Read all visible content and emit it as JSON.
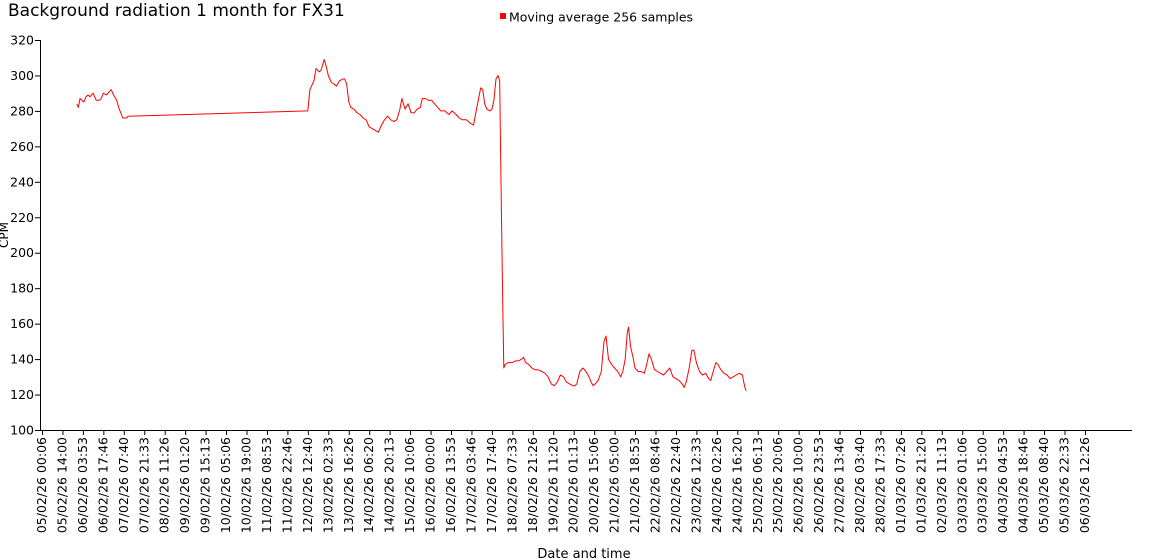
{
  "chart_data": {
    "type": "line",
    "title": "Background radiation 1 month for FX31",
    "xlabel": "Date and time",
    "ylabel": "CPM",
    "ylim": [
      100,
      320
    ],
    "yticks": [
      100,
      120,
      140,
      160,
      180,
      200,
      220,
      240,
      260,
      280,
      300,
      320
    ],
    "xticks": [
      "05/02/26 00:06",
      "05/02/26 14:00",
      "06/02/26 03:53",
      "06/02/26 17:46",
      "07/02/26 07:40",
      "07/02/26 21:33",
      "08/02/26 11:26",
      "09/02/26 01:20",
      "09/02/26 15:13",
      "10/02/26 05:06",
      "10/02/26 19:00",
      "11/02/26 08:53",
      "11/02/26 22:46",
      "12/02/26 12:40",
      "13/02/26 02:33",
      "13/02/26 16:26",
      "14/02/26 06:20",
      "14/02/26 20:13",
      "15/02/26 10:06",
      "16/02/26 00:00",
      "16/02/26 13:53",
      "17/02/26 03:46",
      "17/02/26 17:40",
      "18/02/26 07:33",
      "18/02/26 21:26",
      "19/02/26 11:20",
      "20/02/26 01:13",
      "20/02/26 15:06",
      "21/02/26 05:00",
      "21/02/26 18:53",
      "22/02/26 08:46",
      "22/02/26 22:40",
      "23/02/26 12:33",
      "24/02/26 02:26",
      "24/02/26 16:20",
      "25/02/26 06:13",
      "25/02/26 20:06",
      "26/02/26 10:00",
      "26/02/26 23:53",
      "27/02/26 13:46",
      "28/02/26 03:40",
      "28/02/26 17:33",
      "01/03/26 07:26",
      "01/03/26 21:20",
      "02/03/26 11:13",
      "03/03/26 01:06",
      "03/03/26 15:00",
      "04/03/26 04:53",
      "04/03/26 18:46",
      "05/03/26 08:40",
      "05/03/26 22:33",
      "06/03/26 12:26"
    ],
    "grid": false,
    "legend_position": "top-center",
    "series": [
      {
        "name": "Moving average 256 samples",
        "color": "#ff0000",
        "points": [
          [
            1.7,
            284
          ],
          [
            1.78,
            282
          ],
          [
            1.86,
            287
          ],
          [
            1.95,
            286
          ],
          [
            2.05,
            285
          ],
          [
            2.15,
            288
          ],
          [
            2.25,
            289
          ],
          [
            2.35,
            288
          ],
          [
            2.5,
            290
          ],
          [
            2.65,
            286
          ],
          [
            2.8,
            286
          ],
          [
            2.9,
            287
          ],
          [
            3.0,
            290
          ],
          [
            3.15,
            289
          ],
          [
            3.3,
            291
          ],
          [
            3.38,
            292
          ],
          [
            3.5,
            289
          ],
          [
            3.65,
            286
          ],
          [
            3.75,
            282
          ],
          [
            3.85,
            279
          ],
          [
            3.95,
            276
          ],
          [
            4.15,
            276
          ],
          [
            4.2,
            277
          ],
          [
            13.0,
            280
          ],
          [
            13.1,
            292
          ],
          [
            13.3,
            297
          ],
          [
            13.4,
            304
          ],
          [
            13.55,
            302
          ],
          [
            13.65,
            303
          ],
          [
            13.8,
            309
          ],
          [
            13.9,
            305
          ],
          [
            14.0,
            300
          ],
          [
            14.15,
            296
          ],
          [
            14.3,
            295
          ],
          [
            14.4,
            294
          ],
          [
            14.55,
            297
          ],
          [
            14.7,
            298
          ],
          [
            14.8,
            298
          ],
          [
            14.9,
            295
          ],
          [
            15.0,
            285
          ],
          [
            15.1,
            282
          ],
          [
            15.25,
            281
          ],
          [
            15.4,
            279
          ],
          [
            15.55,
            278
          ],
          [
            15.7,
            276
          ],
          [
            15.85,
            275
          ],
          [
            16.0,
            271
          ],
          [
            16.15,
            270
          ],
          [
            16.3,
            269
          ],
          [
            16.45,
            268
          ],
          [
            16.6,
            272
          ],
          [
            16.75,
            275
          ],
          [
            16.9,
            277
          ],
          [
            17.05,
            275
          ],
          [
            17.2,
            274
          ],
          [
            17.35,
            275
          ],
          [
            17.5,
            281
          ],
          [
            17.6,
            287
          ],
          [
            17.75,
            281
          ],
          [
            17.9,
            284
          ],
          [
            18.05,
            279
          ],
          [
            18.2,
            279
          ],
          [
            18.35,
            281
          ],
          [
            18.5,
            282
          ],
          [
            18.6,
            287
          ],
          [
            18.75,
            287
          ],
          [
            18.9,
            286
          ],
          [
            19.05,
            286
          ],
          [
            19.2,
            284
          ],
          [
            19.35,
            282
          ],
          [
            19.5,
            280
          ],
          [
            19.7,
            280
          ],
          [
            19.9,
            278
          ],
          [
            20.05,
            280
          ],
          [
            20.25,
            278
          ],
          [
            20.4,
            276
          ],
          [
            20.55,
            275
          ],
          [
            20.75,
            275
          ],
          [
            20.95,
            273
          ],
          [
            21.1,
            272
          ],
          [
            21.2,
            278
          ],
          [
            21.35,
            287
          ],
          [
            21.45,
            293
          ],
          [
            21.55,
            292
          ],
          [
            21.65,
            284
          ],
          [
            21.75,
            281
          ],
          [
            21.9,
            280
          ],
          [
            22.0,
            281
          ],
          [
            22.1,
            286
          ],
          [
            22.2,
            298
          ],
          [
            22.3,
            300
          ],
          [
            22.38,
            297
          ],
          [
            22.42,
            260
          ],
          [
            22.52,
            180
          ],
          [
            22.58,
            135
          ],
          [
            22.65,
            137
          ],
          [
            22.8,
            138
          ],
          [
            23.0,
            138
          ],
          [
            23.15,
            139
          ],
          [
            23.3,
            139
          ],
          [
            23.45,
            140
          ],
          [
            23.55,
            141
          ],
          [
            23.65,
            138
          ],
          [
            23.8,
            137
          ],
          [
            23.95,
            135
          ],
          [
            24.1,
            134
          ],
          [
            24.25,
            134
          ],
          [
            24.45,
            133
          ],
          [
            24.6,
            132
          ],
          [
            24.75,
            130
          ],
          [
            24.9,
            126
          ],
          [
            25.05,
            125
          ],
          [
            25.2,
            127
          ],
          [
            25.35,
            131
          ],
          [
            25.5,
            130
          ],
          [
            25.65,
            127
          ],
          [
            25.8,
            126
          ],
          [
            25.95,
            125
          ],
          [
            26.05,
            125
          ],
          [
            26.15,
            126
          ],
          [
            26.3,
            133
          ],
          [
            26.45,
            135
          ],
          [
            26.6,
            133
          ],
          [
            26.75,
            130
          ],
          [
            26.85,
            127
          ],
          [
            26.95,
            125
          ],
          [
            27.05,
            126
          ],
          [
            27.2,
            128
          ],
          [
            27.35,
            133
          ],
          [
            27.48,
            150
          ],
          [
            27.58,
            153
          ],
          [
            27.7,
            140
          ],
          [
            27.85,
            137
          ],
          [
            28.0,
            135
          ],
          [
            28.15,
            133
          ],
          [
            28.3,
            130
          ],
          [
            28.4,
            133
          ],
          [
            28.52,
            140
          ],
          [
            28.62,
            155
          ],
          [
            28.68,
            158
          ],
          [
            28.78,
            147
          ],
          [
            28.9,
            141
          ],
          [
            29.0,
            135
          ],
          [
            29.15,
            133
          ],
          [
            29.3,
            133
          ],
          [
            29.45,
            132
          ],
          [
            29.55,
            136
          ],
          [
            29.68,
            143
          ],
          [
            29.8,
            140
          ],
          [
            29.95,
            134
          ],
          [
            30.1,
            133
          ],
          [
            30.25,
            132
          ],
          [
            30.4,
            131
          ],
          [
            30.55,
            133
          ],
          [
            30.7,
            135
          ],
          [
            30.85,
            130
          ],
          [
            31.0,
            129
          ],
          [
            31.15,
            128
          ],
          [
            31.3,
            126
          ],
          [
            31.4,
            124
          ],
          [
            31.5,
            127
          ],
          [
            31.65,
            135
          ],
          [
            31.78,
            145
          ],
          [
            31.88,
            145
          ],
          [
            32.0,
            138
          ],
          [
            32.15,
            133
          ],
          [
            32.3,
            131
          ],
          [
            32.45,
            132
          ],
          [
            32.6,
            129
          ],
          [
            32.7,
            128
          ],
          [
            32.82,
            133
          ],
          [
            32.95,
            138
          ],
          [
            33.05,
            137
          ],
          [
            33.2,
            134
          ],
          [
            33.35,
            132
          ],
          [
            33.5,
            131
          ],
          [
            33.65,
            129
          ],
          [
            33.8,
            130
          ],
          [
            33.95,
            131
          ],
          [
            34.1,
            132
          ],
          [
            34.25,
            131
          ],
          [
            34.3,
            128
          ],
          [
            34.37,
            124
          ],
          [
            34.43,
            122
          ]
        ]
      }
    ]
  }
}
